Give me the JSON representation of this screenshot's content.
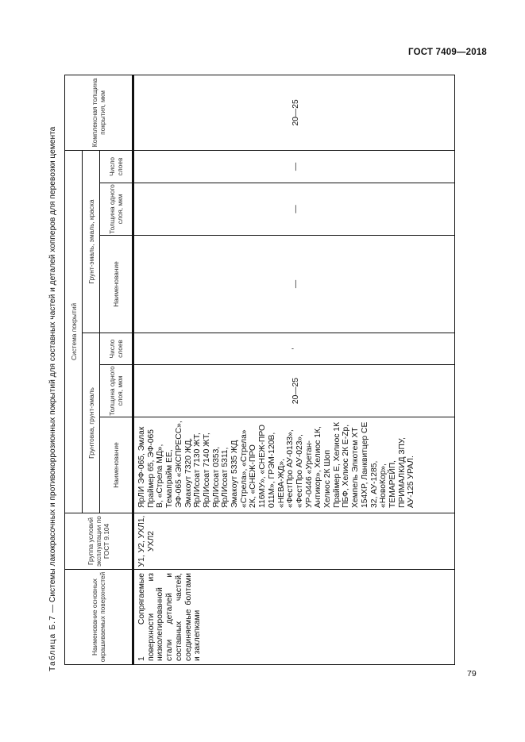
{
  "page": {
    "standard": "ГОСТ 7409—2018",
    "page_number": "79"
  },
  "caption": {
    "label": "Таблица  Б.7",
    "text": " — Системы лакокрасочных и противокоррозионных покрытий для составных частей и деталей хопперов для перевозки цемента"
  },
  "header": {
    "surface": "Наименование основных окрашиваемых поверхностей",
    "group": "Группа условий эксплуатации по ГОСТ 9.104",
    "system": "Система покрытий",
    "primer_group": "Грунтовка, грунт-эмаль",
    "enamel_group": "Грунт-эмаль, эмаль, краска",
    "name": "Наименование",
    "thickness": "Толщина одного слоя, мкм",
    "layers": "Число слоев",
    "total": "Комплексная толщина покрытия, мкм"
  },
  "rows": [
    {
      "surface": "1 Сопрягаемые поверхности из низколегированной стали деталей и составных частей, соединяемые болтами и заклепками",
      "group": "У1, У2, УХЛ1, УХЛ2",
      "primer_names": "ЯрЛИ ЭФ-065, Эмлак Праймер 65, ЭФ-065 В, «Стрела МД», Темапрайм ЕЕ, ЭФ-065 «ЭКСПРЕСС», Эмакоут 7320 ЖД, ЯрЛИсоат 7130 ЖТ, ЯрЛИсоат 7140 ЖТ, ЯрЛИсоат 0353, ЯрЛИсоат 5311, Эмакоут 5335 ЖД «Стрела», «Стрела» 2К, «СНЕЖ-ПРО 116МУ», «СНЕЖ-ПРО 011М», ГРЭМ-120В, «НЕВА-ЖД», «ФестПро АУ-0133», «ФестПро АУ-023», УР-0446 «Уретан-Антикор», Хелиос 1К, Хелиос 2К Шоп Праймер Е, Хелиос 1К ПБФ, Хелиос 2К E-Zp, Хемпель Элкотем XT 154XP, Ланквитцер СЕ 32, АУ-1285, «НовоКор», ТЕМАРЕЙП, ПРИМАЛКИД ЗПУ, АУ-125 УРАЛ.",
      "primer_thickness": "20—25",
      "primer_layers": "ʼ",
      "enamel_name": "—",
      "enamel_thickness": "—",
      "enamel_layers": "—",
      "total": "20—25"
    }
  ]
}
